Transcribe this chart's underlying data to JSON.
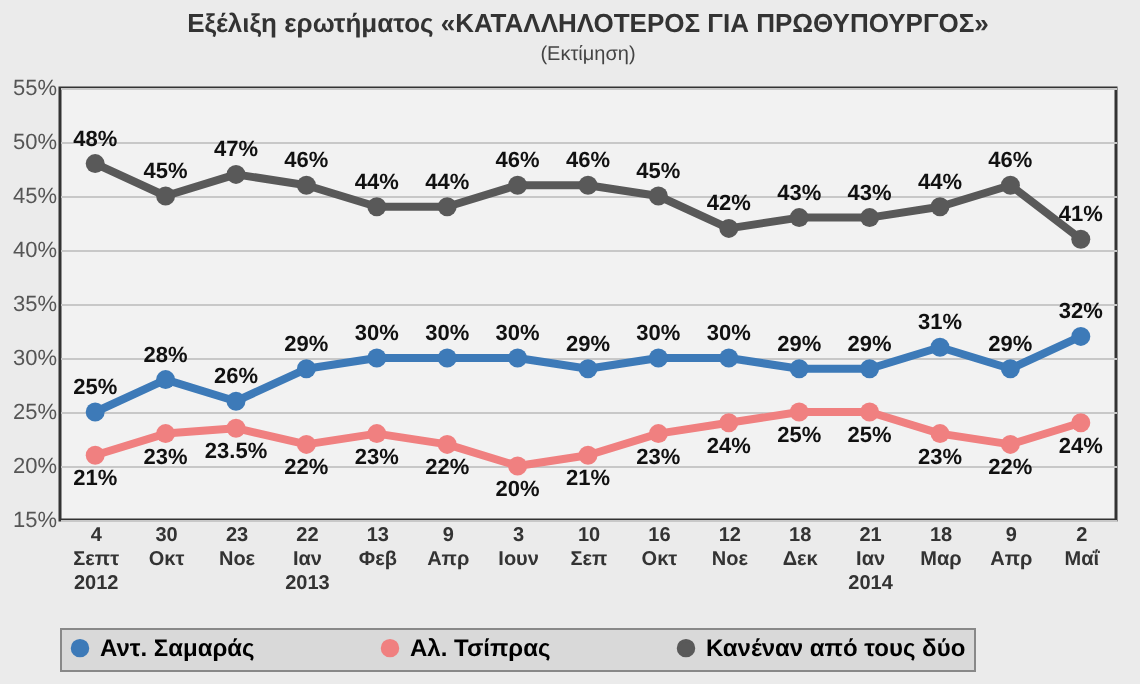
{
  "chart_data": {
    "type": "line",
    "title": "Εξέλιξη ερωτήματος «ΚΑΤΑΛΛΗΛΟΤΕΡΟΣ ΓΙΑ ΠΡΩΘΥΠΟΥΡΓΟΣ»",
    "subtitle": "(Εκτίμηση)",
    "categories": [
      "4\nΣεπτ\n2012",
      "30\nΟκτ",
      "23\nΝοε",
      "22\nΙαν\n2013",
      "13\nΦεβ",
      "9\nΑπρ",
      "3\nΙουν",
      "10\nΣεπ",
      "16\nΟκτ",
      "12\nΝοε",
      "18\nΔεκ",
      "21\nΙαν\n2014",
      "18\nΜαρ",
      "9\nΑπρ",
      "2\nΜαΐ"
    ],
    "series": [
      {
        "name": "Αντ. Σαμαράς",
        "color": "#3d7ab8",
        "values": [
          25,
          28,
          26,
          29,
          30,
          30,
          30,
          29,
          30,
          30,
          29,
          29,
          31,
          29,
          32
        ],
        "value_labels": [
          "25%",
          "28%",
          "26%",
          "29%",
          "30%",
          "30%",
          "30%",
          "29%",
          "30%",
          "30%",
          "29%",
          "29%",
          "31%",
          "29%",
          "32%"
        ]
      },
      {
        "name": "Αλ. Τσίπρας",
        "color": "#f08080",
        "values": [
          21,
          23,
          23.5,
          22,
          23,
          22,
          20,
          21,
          23,
          24,
          25,
          25,
          23,
          22,
          24
        ],
        "value_labels": [
          "21%",
          "23%",
          "23.5%",
          "22%",
          "23%",
          "22%",
          "20%",
          "21%",
          "23%",
          "24%",
          "25%",
          "25%",
          "23%",
          "22%",
          "24%"
        ]
      },
      {
        "name": "Κανέναν από τους δύο",
        "color": "#595959",
        "values": [
          48,
          45,
          47,
          46,
          44,
          44,
          46,
          46,
          45,
          42,
          43,
          43,
          44,
          46,
          41
        ],
        "value_labels": [
          "48%",
          "45%",
          "47%",
          "46%",
          "44%",
          "44%",
          "46%",
          "46%",
          "45%",
          "42%",
          "43%",
          "43%",
          "44%",
          "46%",
          "41%"
        ]
      }
    ],
    "ylim": [
      15,
      55
    ],
    "yticks": [
      {
        "value": 15,
        "label": "15%"
      },
      {
        "value": 20,
        "label": "20%"
      },
      {
        "value": 25,
        "label": "25%"
      },
      {
        "value": 30,
        "label": "30%"
      },
      {
        "value": 35,
        "label": "35%"
      },
      {
        "value": 40,
        "label": "40%"
      },
      {
        "value": 45,
        "label": "45%"
      },
      {
        "value": 50,
        "label": "50%"
      },
      {
        "value": 55,
        "label": "55%"
      }
    ],
    "grid": "y",
    "legend": "bottom",
    "marker": "circle",
    "line_style": "solid"
  }
}
